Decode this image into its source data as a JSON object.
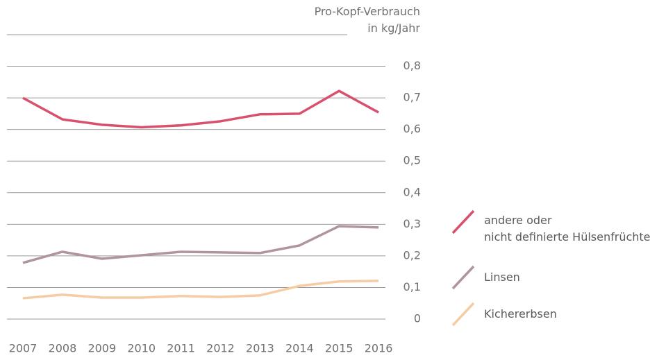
{
  "chart_data": {
    "type": "line",
    "y_label": "Pro-Kopf-Verbrauch\nin kg/Jahr",
    "x": [
      "2007",
      "2008",
      "2009",
      "2010",
      "2011",
      "2012",
      "2013",
      "2014",
      "2015",
      "2016"
    ],
    "series": [
      {
        "name": "andere oder\nnicht definierte Hülsenfrüchte",
        "color": "#d9506f",
        "values": [
          0.7,
          0.632,
          0.615,
          0.607,
          0.613,
          0.626,
          0.648,
          0.65,
          0.722,
          0.654
        ]
      },
      {
        "name": "Linsen",
        "color": "#b0959a",
        "values": [
          0.178,
          0.213,
          0.191,
          0.202,
          0.213,
          0.211,
          0.209,
          0.233,
          0.294,
          0.29
        ]
      },
      {
        "name": "Kichererbsen",
        "color": "#f5cca3",
        "values": [
          0.066,
          0.077,
          0.068,
          0.068,
          0.073,
          0.07,
          0.075,
          0.105,
          0.119,
          0.121
        ]
      }
    ],
    "ylim": [
      0,
      0.9
    ],
    "yticks": [
      {
        "value": 0,
        "label": "0"
      },
      {
        "value": 0.1,
        "label": "0,1"
      },
      {
        "value": 0.2,
        "label": "0,2"
      },
      {
        "value": 0.3,
        "label": "0,3"
      },
      {
        "value": 0.4,
        "label": "0,4"
      },
      {
        "value": 0.5,
        "label": "0,5"
      },
      {
        "value": 0.6,
        "label": "0,6"
      },
      {
        "value": 0.7,
        "label": "0,7"
      },
      {
        "value": 0.8,
        "label": "0,8"
      }
    ],
    "grid": true
  }
}
